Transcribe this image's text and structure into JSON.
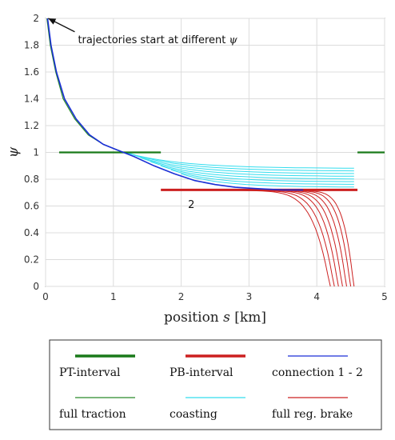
{
  "chart_data": {
    "type": "line",
    "xlabel_prefix": "position ",
    "xlabel_var": "s",
    "xlabel_suffix": " [km]",
    "ylabel": "ψ",
    "xlim": [
      0,
      5
    ],
    "ylim": [
      0,
      2
    ],
    "xticks": [
      0,
      1,
      2,
      3,
      4,
      5
    ],
    "yticks": [
      0,
      0.2,
      0.4,
      0.6,
      0.8,
      1,
      1.2,
      1.4,
      1.6,
      1.8,
      2
    ],
    "grid": true,
    "annotation": {
      "text_prefix": "trajectories start at different ",
      "text_var": "ψ",
      "arrow_from": [
        0.43,
        1.9
      ],
      "arrow_to": [
        0.04,
        2.0
      ]
    },
    "point_label": {
      "text": "2",
      "x": 2.1,
      "y": 0.67
    },
    "pt_intervals": [
      {
        "x0": 0.2,
        "x1": 1.7,
        "y": 1.0
      },
      {
        "x0": 4.6,
        "x1": 5.0,
        "y": 1.0
      }
    ],
    "pb_interval": {
      "x0": 1.7,
      "x1": 4.6,
      "y": 0.72
    },
    "connection": [
      [
        0.03,
        2.0
      ],
      [
        0.08,
        1.8
      ],
      [
        0.16,
        1.6
      ],
      [
        0.28,
        1.4
      ],
      [
        0.45,
        1.25
      ],
      [
        0.65,
        1.13
      ],
      [
        0.85,
        1.06
      ],
      [
        1.05,
        1.02
      ],
      [
        1.3,
        0.97
      ],
      [
        1.6,
        0.9
      ],
      [
        1.9,
        0.84
      ],
      [
        2.2,
        0.79
      ],
      [
        2.5,
        0.76
      ],
      [
        2.8,
        0.74
      ],
      [
        3.1,
        0.73
      ],
      [
        3.5,
        0.72
      ],
      [
        3.8,
        0.72
      ]
    ],
    "full_traction": [
      [
        0.02,
        2.0
      ],
      [
        0.07,
        1.8
      ],
      [
        0.15,
        1.6
      ],
      [
        0.26,
        1.4
      ],
      [
        0.43,
        1.25
      ],
      [
        0.63,
        1.13
      ],
      [
        0.85,
        1.06
      ],
      [
        1.1,
        1.01
      ]
    ],
    "coasting": [
      {
        "x0": 1.1,
        "x1": 4.55,
        "y0": 1.01,
        "y1": 0.88
      },
      {
        "x0": 1.2,
        "x1": 4.55,
        "y0": 1.0,
        "y1": 0.86
      },
      {
        "x0": 1.3,
        "x1": 4.55,
        "y0": 0.98,
        "y1": 0.84
      },
      {
        "x0": 1.4,
        "x1": 4.55,
        "y0": 0.96,
        "y1": 0.82
      },
      {
        "x0": 1.55,
        "x1": 4.55,
        "y0": 0.93,
        "y1": 0.8
      },
      {
        "x0": 1.7,
        "x1": 4.55,
        "y0": 0.9,
        "y1": 0.78
      },
      {
        "x0": 1.85,
        "x1": 4.55,
        "y0": 0.87,
        "y1": 0.76
      },
      {
        "x0": 2.0,
        "x1": 4.55,
        "y0": 0.84,
        "y1": 0.74
      }
    ],
    "full_reg_brake_end_x": [
      4.2,
      4.26,
      4.32,
      4.38,
      4.44,
      4.5,
      4.55
    ],
    "full_reg_brake_start_x": [
      2.5,
      2.7,
      2.9,
      3.05,
      3.2,
      3.35,
      3.5
    ],
    "legend": {
      "placement": "below",
      "entries": [
        {
          "label": "PT-interval",
          "color": "#1a7a1a",
          "style": "thick"
        },
        {
          "label": "PB-interval",
          "color": "#cc2020",
          "style": "thick"
        },
        {
          "label": "connection  1 - 2",
          "color": "#1a2fd6",
          "style": "thin"
        },
        {
          "label": "full traction",
          "color": "#2a8a2a",
          "style": "thin"
        },
        {
          "label": "coasting",
          "color": "#33ddee",
          "style": "thin"
        },
        {
          "label": "full reg. brake",
          "color": "#cc2020",
          "style": "thin"
        }
      ]
    },
    "colors": {
      "pt": "#1a7a1a",
      "pb": "#cc2020",
      "connection": "#1a2fd6",
      "traction": "#2a8a2a",
      "coasting": "#33ddee",
      "brake": "#cc2020"
    }
  }
}
